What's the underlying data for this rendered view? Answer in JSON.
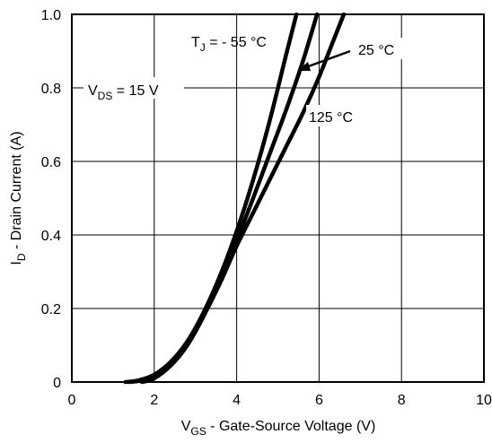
{
  "chart_data": {
    "type": "line",
    "x_axis": {
      "label_main": "V",
      "label_sub": "GS",
      "label_rest": " - Gate-Source Voltage (V)",
      "range": [
        0,
        10
      ],
      "ticks": [
        0,
        2,
        4,
        6,
        8,
        10
      ],
      "tick_labels": [
        "0",
        "2",
        "4",
        "6",
        "8",
        "10"
      ]
    },
    "y_axis": {
      "label_main": "I",
      "label_sub": "D",
      "label_rest": " - Drain Current (A)",
      "range": [
        0,
        1.0
      ],
      "ticks": [
        0,
        0.2,
        0.4,
        0.6,
        0.8,
        1.0
      ],
      "tick_labels": [
        "0",
        "0.2",
        "0.4",
        "0.6",
        "0.8",
        "1.0"
      ]
    },
    "grid": true,
    "series": [
      {
        "name": "- 55 °C",
        "x": [
          1.3,
          1.6,
          2.0,
          2.4,
          2.8,
          3.2,
          3.6,
          4.0,
          4.4,
          4.8,
          5.2,
          5.45
        ],
        "y": [
          0.0,
          0.004,
          0.02,
          0.055,
          0.11,
          0.19,
          0.29,
          0.41,
          0.55,
          0.71,
          0.89,
          1.0
        ]
      },
      {
        "name": "25 °C",
        "x": [
          1.4,
          1.7,
          2.0,
          2.4,
          2.8,
          3.2,
          3.6,
          4.0,
          4.4,
          4.8,
          5.2,
          5.6,
          5.95
        ],
        "y": [
          0.0,
          0.004,
          0.014,
          0.045,
          0.1,
          0.18,
          0.28,
          0.385,
          0.5,
          0.62,
          0.74,
          0.87,
          1.0
        ]
      },
      {
        "name": "125 °C",
        "x": [
          1.7,
          2.0,
          2.4,
          2.8,
          3.2,
          3.6,
          4.0,
          4.4,
          4.8,
          5.2,
          5.6,
          6.0,
          6.3,
          6.6
        ],
        "y": [
          0.0,
          0.01,
          0.045,
          0.1,
          0.18,
          0.27,
          0.37,
          0.46,
          0.55,
          0.64,
          0.73,
          0.83,
          0.915,
          1.0
        ]
      }
    ],
    "annotations": {
      "vds_main": "V",
      "vds_sub": "DS",
      "vds_rest": " = 15 V",
      "tj_main": "T",
      "tj_sub": "J",
      "tj_rest": " = - 55 °C",
      "label_25": "25 °C",
      "label_125": "125 °C"
    }
  }
}
